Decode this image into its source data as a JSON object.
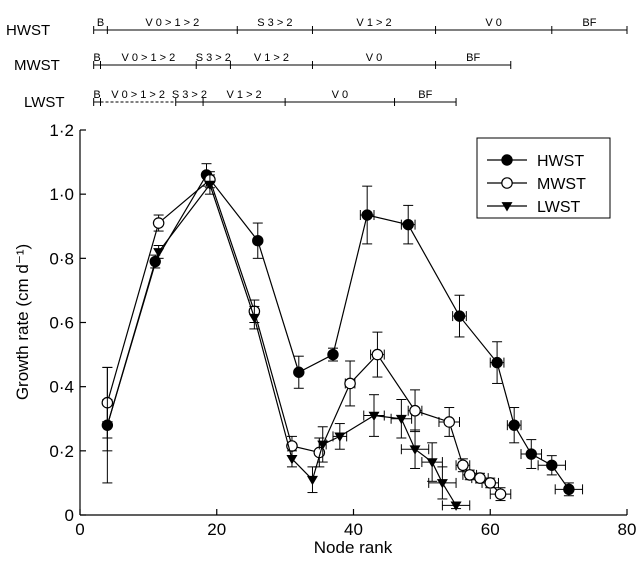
{
  "chart_data": {
    "type": "line",
    "title": "",
    "xlabel": "Node rank",
    "ylabel": "Growth rate (cm d⁻¹)",
    "xlim": [
      0,
      80
    ],
    "ylim": [
      0,
      1.2
    ],
    "x_ticks": [
      0,
      20,
      40,
      60,
      80
    ],
    "x_tick_labels": [
      "0",
      "20",
      "40",
      "60",
      "80"
    ],
    "y_ticks": [
      0,
      0.2,
      0.4,
      0.6,
      0.8,
      1.0,
      1.2
    ],
    "y_tick_labels": [
      "0",
      "0·2",
      "0·4",
      "0·6",
      "0·8",
      "1·0",
      "1·2"
    ],
    "grid": false,
    "legend_position": "top-right",
    "series": [
      {
        "name": "HWST",
        "marker": "filled-circle",
        "points": [
          {
            "x": 4,
            "y": 0.28,
            "yerr": 0.08,
            "xerr": 0
          },
          {
            "x": 11,
            "y": 0.79,
            "yerr": 0.02,
            "xerr": 0
          },
          {
            "x": 18.5,
            "y": 1.06,
            "yerr": 0.035,
            "xerr": 0
          },
          {
            "x": 26,
            "y": 0.855,
            "yerr": 0.055,
            "xerr": 0
          },
          {
            "x": 32,
            "y": 0.445,
            "yerr": 0.05,
            "xerr": 0
          },
          {
            "x": 37,
            "y": 0.5,
            "yerr": 0.02,
            "xerr": 0
          },
          {
            "x": 42,
            "y": 0.935,
            "yerr": 0.09,
            "xerr": 1
          },
          {
            "x": 48,
            "y": 0.905,
            "yerr": 0.06,
            "xerr": 1
          },
          {
            "x": 55.5,
            "y": 0.62,
            "yerr": 0.065,
            "xerr": 1
          },
          {
            "x": 61,
            "y": 0.475,
            "yerr": 0.065,
            "xerr": 1
          },
          {
            "x": 63.5,
            "y": 0.28,
            "yerr": 0.055,
            "xerr": 1
          },
          {
            "x": 66,
            "y": 0.19,
            "yerr": 0.045,
            "xerr": 1.5
          },
          {
            "x": 69,
            "y": 0.155,
            "yerr": 0.03,
            "xerr": 2
          },
          {
            "x": 71.5,
            "y": 0.08,
            "yerr": 0.02,
            "xerr": 2
          }
        ]
      },
      {
        "name": "MWST",
        "marker": "open-circle",
        "points": [
          {
            "x": 4,
            "y": 0.35,
            "yerr": 0.11,
            "xerr": 0
          },
          {
            "x": 11.5,
            "y": 0.91,
            "yerr": 0.025,
            "xerr": 0
          },
          {
            "x": 19,
            "y": 1.045,
            "yerr": 0.025,
            "xerr": 0
          },
          {
            "x": 25.5,
            "y": 0.635,
            "yerr": 0.035,
            "xerr": 0
          },
          {
            "x": 31,
            "y": 0.215,
            "yerr": 0.03,
            "xerr": 0
          },
          {
            "x": 35,
            "y": 0.195,
            "yerr": 0.045,
            "xerr": 0
          },
          {
            "x": 39.5,
            "y": 0.41,
            "yerr": 0.07,
            "xerr": 0.7
          },
          {
            "x": 43.5,
            "y": 0.5,
            "yerr": 0.07,
            "xerr": 1
          },
          {
            "x": 49,
            "y": 0.325,
            "yerr": 0.065,
            "xerr": 1
          },
          {
            "x": 54,
            "y": 0.29,
            "yerr": 0.045,
            "xerr": 1.5
          },
          {
            "x": 56,
            "y": 0.155,
            "yerr": 0.02,
            "xerr": 1
          },
          {
            "x": 57,
            "y": 0.125,
            "yerr": 0.015,
            "xerr": 1
          },
          {
            "x": 58.5,
            "y": 0.115,
            "yerr": 0.015,
            "xerr": 1.2
          },
          {
            "x": 60,
            "y": 0.1,
            "yerr": 0.015,
            "xerr": 1.2
          },
          {
            "x": 61.5,
            "y": 0.065,
            "yerr": 0.02,
            "xerr": 1.5
          }
        ]
      },
      {
        "name": "LWST",
        "marker": "filled-triangle-down",
        "points": [
          {
            "x": 4,
            "y": 0.28,
            "yerr": 0.18,
            "xerr": 0
          },
          {
            "x": 11.5,
            "y": 0.82,
            "yerr": 0.02,
            "xerr": 0
          },
          {
            "x": 19,
            "y": 1.03,
            "yerr": 0.03,
            "xerr": 0
          },
          {
            "x": 25.5,
            "y": 0.615,
            "yerr": 0.035,
            "xerr": 0
          },
          {
            "x": 31,
            "y": 0.175,
            "yerr": 0.025,
            "xerr": 0
          },
          {
            "x": 34,
            "y": 0.11,
            "yerr": 0.04,
            "xerr": 0
          },
          {
            "x": 35.5,
            "y": 0.22,
            "yerr": 0.055,
            "xerr": 0.5
          },
          {
            "x": 38,
            "y": 0.245,
            "yerr": 0.04,
            "xerr": 1
          },
          {
            "x": 43,
            "y": 0.31,
            "yerr": 0.065,
            "xerr": 1.5
          },
          {
            "x": 47,
            "y": 0.3,
            "yerr": 0.06,
            "xerr": 1.5
          },
          {
            "x": 49,
            "y": 0.205,
            "yerr": 0.06,
            "xerr": 2
          },
          {
            "x": 51.5,
            "y": 0.165,
            "yerr": 0.06,
            "xerr": 1.5
          },
          {
            "x": 53,
            "y": 0.1,
            "yerr": 0.05,
            "xerr": 2
          },
          {
            "x": 55,
            "y": 0.03,
            "yerr": 0.01,
            "xerr": 2
          }
        ]
      }
    ],
    "phase_bars": [
      {
        "name": "HWST",
        "segments": [
          {
            "label": "B",
            "from": 2,
            "to": 4
          },
          {
            "label": "V 0 > 1 > 2",
            "from": 4,
            "to": 23
          },
          {
            "label": "S 3 > 2",
            "from": 23,
            "to": 34
          },
          {
            "label": "V 1 > 2",
            "from": 34,
            "to": 52
          },
          {
            "label": "V 0",
            "from": 52,
            "to": 69
          },
          {
            "label": "BF",
            "from": 69,
            "to": 80
          }
        ]
      },
      {
        "name": "MWST",
        "segments": [
          {
            "label": "B",
            "from": 2,
            "to": 3
          },
          {
            "label": "V 0 > 1 > 2",
            "from": 3,
            "to": 17
          },
          {
            "label": "S 3 > 2",
            "from": 17,
            "to": 22
          },
          {
            "label": "V 1 > 2",
            "from": 22,
            "to": 34
          },
          {
            "label": "V 0",
            "from": 34,
            "to": 52
          },
          {
            "label": "BF",
            "from": 52,
            "to": 63
          }
        ]
      },
      {
        "name": "LWST",
        "segments": [
          {
            "label": "B",
            "from": 2,
            "to": 3
          },
          {
            "label": "V 0 > 1 > 2",
            "from": 3,
            "to": 14,
            "dashed": true
          },
          {
            "label": "S 3 > 2",
            "from": 14,
            "to": 18
          },
          {
            "label": "V 1 > 2",
            "from": 18,
            "to": 30
          },
          {
            "label": "V 0",
            "from": 30,
            "to": 46
          },
          {
            "label": "BF",
            "from": 46,
            "to": 55
          }
        ]
      }
    ]
  }
}
